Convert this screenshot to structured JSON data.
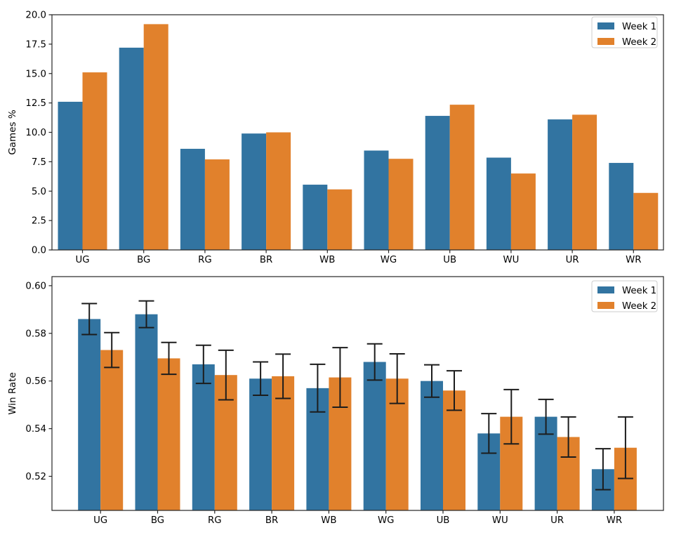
{
  "figure": {
    "background": "#ffffff",
    "text_color": "#000000"
  },
  "palette": {
    "week1": "#3274a1",
    "week2": "#e1812c",
    "error_bar": "#1c1c1c",
    "spine": "#262626",
    "tick": "#262626",
    "legend_border": "#cccccc",
    "legend_bg": "#ffffff"
  },
  "legend_labels": [
    "Week 1",
    "Week 2"
  ],
  "chart_data": [
    {
      "type": "bar",
      "title": "",
      "xlabel": "",
      "ylabel": "Games %",
      "grid": false,
      "legend_position": "upper right",
      "categories": [
        "UG",
        "BG",
        "RG",
        "BR",
        "WB",
        "WG",
        "UB",
        "WU",
        "UR",
        "WR"
      ],
      "series": [
        {
          "name": "Week 1",
          "color_key": "week1",
          "values": [
            12.6,
            17.2,
            8.6,
            9.9,
            5.55,
            8.45,
            11.4,
            7.85,
            11.1,
            7.4
          ]
        },
        {
          "name": "Week 2",
          "color_key": "week2",
          "values": [
            15.1,
            19.2,
            7.7,
            10.0,
            5.15,
            7.75,
            12.35,
            6.5,
            11.5,
            4.85
          ]
        }
      ],
      "ylim": [
        0,
        20
      ],
      "yticks": [
        0,
        2.5,
        5,
        7.5,
        10,
        12.5,
        15,
        17.5,
        20
      ],
      "ytick_labels": [
        "0.0",
        "2.5",
        "5.0",
        "7.5",
        "10.0",
        "12.5",
        "15.0",
        "17.5",
        "20.0"
      ]
    },
    {
      "type": "bar",
      "title": "",
      "xlabel": "",
      "ylabel": "Win Rate",
      "grid": false,
      "legend_position": "upper right",
      "error_bars": true,
      "categories": [
        "UG",
        "BG",
        "RG",
        "BR",
        "WB",
        "WG",
        "UB",
        "WU",
        "UR",
        "WR"
      ],
      "series": [
        {
          "name": "Week 1",
          "color_key": "week1",
          "values": [
            0.586,
            0.588,
            0.567,
            0.561,
            0.557,
            0.568,
            0.56,
            0.538,
            0.545,
            0.523
          ],
          "errors": [
            0.0065,
            0.0056,
            0.008,
            0.007,
            0.01,
            0.0076,
            0.0068,
            0.0083,
            0.0073,
            0.0086
          ]
        },
        {
          "name": "Week 2",
          "color_key": "week2",
          "values": [
            0.573,
            0.5695,
            0.5625,
            0.562,
            0.5615,
            0.561,
            0.556,
            0.545,
            0.5365,
            0.532
          ],
          "errors": [
            0.0073,
            0.0067,
            0.0104,
            0.0093,
            0.0125,
            0.0104,
            0.0083,
            0.0114,
            0.0084,
            0.0129
          ]
        }
      ],
      "ylim": [
        0.5057,
        0.6038
      ],
      "yticks": [
        0.52,
        0.54,
        0.56,
        0.58,
        0.6
      ],
      "ytick_labels": [
        "0.52",
        "0.54",
        "0.56",
        "0.58",
        "0.60"
      ]
    }
  ]
}
